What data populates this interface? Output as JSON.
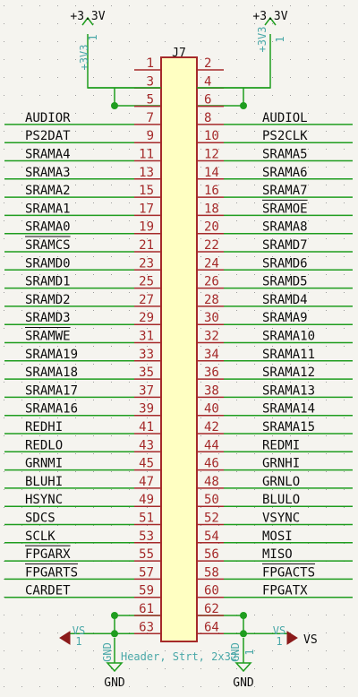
{
  "component": {
    "reference": "J7",
    "value": "Header, Strt, 2x32"
  },
  "pins": [
    {
      "num": "1",
      "net": ""
    },
    {
      "num": "2",
      "net": ""
    },
    {
      "num": "3",
      "net": ""
    },
    {
      "num": "4",
      "net": ""
    },
    {
      "num": "5",
      "net": ""
    },
    {
      "num": "6",
      "net": ""
    },
    {
      "num": "7",
      "net": "AUDIOR"
    },
    {
      "num": "8",
      "net": "AUDIOL"
    },
    {
      "num": "9",
      "net": "PS2DAT"
    },
    {
      "num": "10",
      "net": "PS2CLK"
    },
    {
      "num": "11",
      "net": "SRAMA4"
    },
    {
      "num": "12",
      "net": "SRAMA5"
    },
    {
      "num": "13",
      "net": "SRAMA3"
    },
    {
      "num": "14",
      "net": "SRAMA6"
    },
    {
      "num": "15",
      "net": "SRAMA2"
    },
    {
      "num": "16",
      "net": "SRAMA7"
    },
    {
      "num": "17",
      "net": "SRAMA1"
    },
    {
      "num": "18",
      "net": "SRAMOE",
      "overbar": true
    },
    {
      "num": "19",
      "net": "SRAMA0"
    },
    {
      "num": "20",
      "net": "SRAMA8"
    },
    {
      "num": "21",
      "net": "SRAMCS",
      "overbar": true
    },
    {
      "num": "22",
      "net": "SRAMD7"
    },
    {
      "num": "23",
      "net": "SRAMD0"
    },
    {
      "num": "24",
      "net": "SRAMD6"
    },
    {
      "num": "25",
      "net": "SRAMD1"
    },
    {
      "num": "26",
      "net": "SRAMD5"
    },
    {
      "num": "27",
      "net": "SRAMD2"
    },
    {
      "num": "28",
      "net": "SRAMD4"
    },
    {
      "num": "29",
      "net": "SRAMD3"
    },
    {
      "num": "30",
      "net": "SRAMA9"
    },
    {
      "num": "31",
      "net": "SRAMWE",
      "overbar": true
    },
    {
      "num": "32",
      "net": "SRAMA10"
    },
    {
      "num": "33",
      "net": "SRAMA19"
    },
    {
      "num": "34",
      "net": "SRAMA11"
    },
    {
      "num": "35",
      "net": "SRAMA18"
    },
    {
      "num": "36",
      "net": "SRAMA12"
    },
    {
      "num": "37",
      "net": "SRAMA17"
    },
    {
      "num": "38",
      "net": "SRAMA13"
    },
    {
      "num": "39",
      "net": "SRAMA16"
    },
    {
      "num": "40",
      "net": "SRAMA14"
    },
    {
      "num": "41",
      "net": "REDHI"
    },
    {
      "num": "42",
      "net": "SRAMA15"
    },
    {
      "num": "43",
      "net": "REDLO"
    },
    {
      "num": "44",
      "net": "REDMI"
    },
    {
      "num": "45",
      "net": "GRNMI"
    },
    {
      "num": "46",
      "net": "GRNHI"
    },
    {
      "num": "47",
      "net": "BLUHI"
    },
    {
      "num": "48",
      "net": "GRNLO"
    },
    {
      "num": "49",
      "net": "HSYNC"
    },
    {
      "num": "50",
      "net": "BLULO"
    },
    {
      "num": "51",
      "net": "SDCS"
    },
    {
      "num": "52",
      "net": "VSYNC"
    },
    {
      "num": "53",
      "net": "SCLK"
    },
    {
      "num": "54",
      "net": "MOSI"
    },
    {
      "num": "55",
      "net": "FPGARX",
      "overbar": true
    },
    {
      "num": "56",
      "net": "MISO"
    },
    {
      "num": "57",
      "net": "FPGARTS",
      "overbar": true
    },
    {
      "num": "58",
      "net": "FPGACTS",
      "overbar": true
    },
    {
      "num": "59",
      "net": "CARDET"
    },
    {
      "num": "60",
      "net": "FPGATX"
    },
    {
      "num": "61",
      "net": ""
    },
    {
      "num": "62",
      "net": ""
    },
    {
      "num": "63",
      "net": ""
    },
    {
      "num": "64",
      "net": ""
    }
  ],
  "power": {
    "v33_left": {
      "label": "+3.3V",
      "field": "+3V3",
      "pin": "1"
    },
    "v33_right": {
      "label": "+3.3V",
      "field": "+3V3",
      "pin": "1"
    },
    "vs_left": {
      "field": "VS",
      "pin": "1"
    },
    "vs_right": {
      "label": "VS",
      "field": "VS",
      "pin": "1"
    },
    "gnd_left": {
      "label": "GND",
      "field": "GND",
      "pin": "1"
    },
    "gnd_right": {
      "label": "GND",
      "field": "GND",
      "pin": "1"
    }
  },
  "colors": {
    "background": "#f5f4ef",
    "grid_dot": "#9c9c9c",
    "wire": "#1f9d1f",
    "junction": "#1f9d1f",
    "body_fill": "#ffffc2",
    "body_stroke": "#a52a2a",
    "pin": "#a52a2a",
    "power_field": "#4aa8a8",
    "text": "#0d0d0d",
    "vs_flag": "#8b1a1a"
  }
}
